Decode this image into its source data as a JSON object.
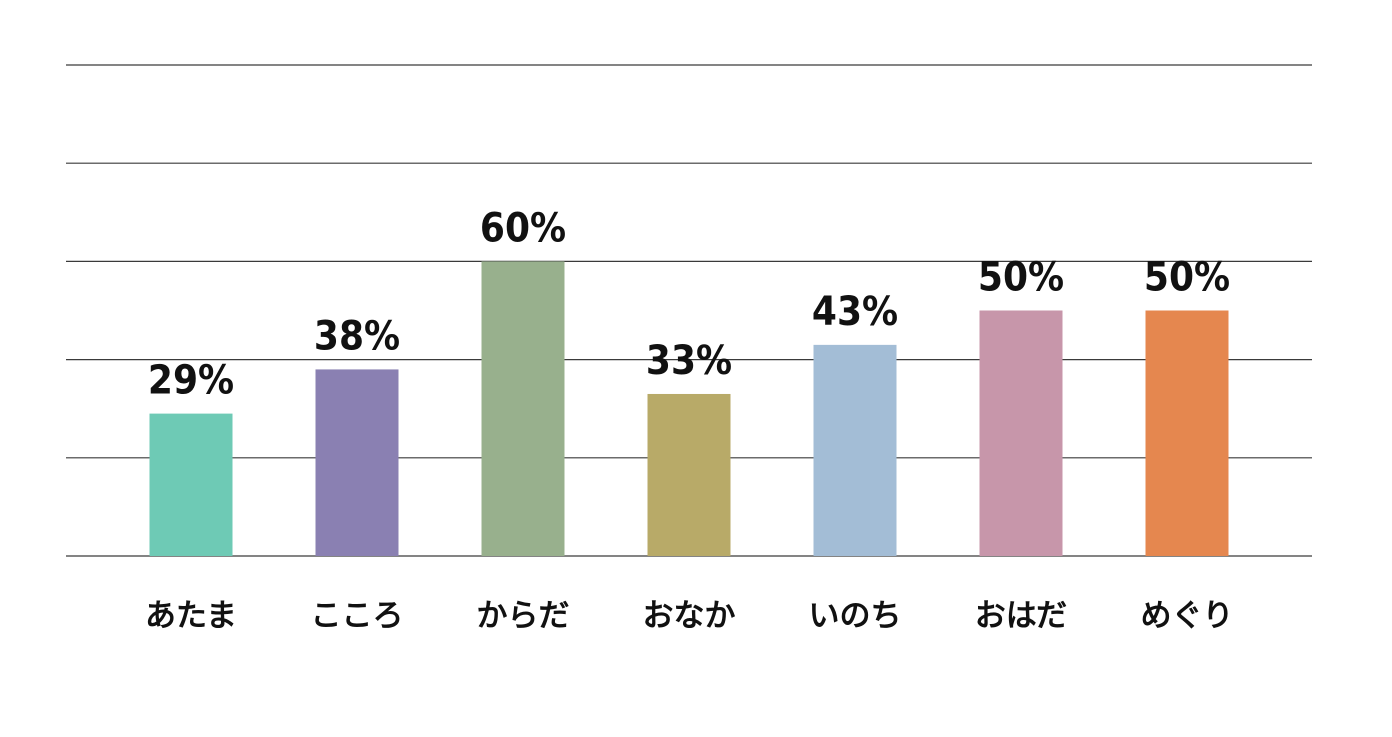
{
  "chart_data": {
    "type": "bar",
    "categories": [
      "あたま",
      "こころ",
      "からだ",
      "おなか",
      "いのち",
      "おはだ",
      "めぐり"
    ],
    "values": [
      29,
      38,
      60,
      33,
      43,
      50,
      50
    ],
    "value_labels": [
      "29%",
      "38%",
      "60%",
      "33%",
      "43%",
      "50%",
      "50%"
    ],
    "colors": [
      "#6ecab5",
      "#8a80b2",
      "#98b08d",
      "#b8aa68",
      "#a3bdd6",
      "#c796aa",
      "#e5874f"
    ],
    "title": "",
    "xlabel": "",
    "ylabel": "",
    "ylim": [
      0,
      100
    ],
    "gridlines": [
      0,
      20,
      40,
      60,
      80,
      100
    ],
    "grid": true,
    "legend": "none"
  }
}
